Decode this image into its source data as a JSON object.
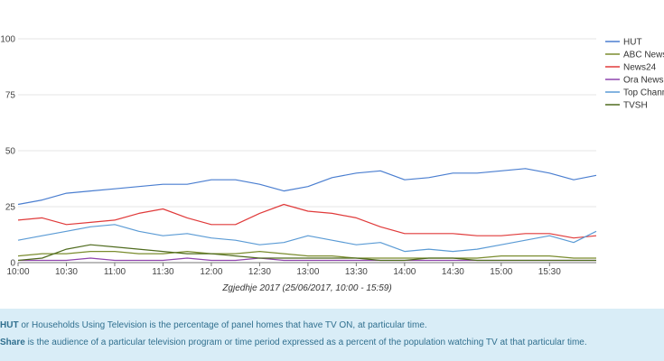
{
  "chart_data": {
    "type": "line",
    "xlabel": "Zgjedhje 2017 (25/06/2017, 10:00 - 15:59)",
    "x_ticks": [
      "10:00",
      "10:30",
      "11:00",
      "11:30",
      "12:00",
      "12:30",
      "13:00",
      "13:30",
      "14:00",
      "14:30",
      "15:00",
      "15:30"
    ],
    "x_range": [
      "10:00",
      "15:59"
    ],
    "ylim": [
      0,
      100
    ],
    "y_ticks": [
      0,
      25,
      50,
      75,
      100
    ],
    "grid": "horizontal",
    "legend_position": "right",
    "series": [
      {
        "name": "HUT",
        "color": "#4a7ed0",
        "times": [
          "10:00",
          "10:15",
          "10:30",
          "10:45",
          "11:00",
          "11:15",
          "11:30",
          "11:45",
          "12:00",
          "12:15",
          "12:30",
          "12:45",
          "13:00",
          "13:15",
          "13:30",
          "13:45",
          "14:00",
          "14:15",
          "14:30",
          "14:45",
          "15:00",
          "15:15",
          "15:30",
          "15:45",
          "15:59"
        ],
        "values": [
          26,
          28,
          31,
          32,
          33,
          34,
          35,
          35,
          37,
          37,
          35,
          32,
          34,
          38,
          40,
          41,
          37,
          38,
          40,
          40,
          41,
          42,
          40,
          37,
          39
        ]
      },
      {
        "name": "ABC News",
        "color": "#7a8c2e",
        "times": [
          "10:00",
          "10:15",
          "10:30",
          "10:45",
          "11:00",
          "11:15",
          "11:30",
          "11:45",
          "12:00",
          "12:15",
          "12:30",
          "12:45",
          "13:00",
          "13:15",
          "13:30",
          "13:45",
          "14:00",
          "14:15",
          "14:30",
          "14:45",
          "15:00",
          "15:15",
          "15:30",
          "15:45",
          "15:59"
        ],
        "values": [
          3,
          4,
          4,
          5,
          5,
          4,
          4,
          5,
          4,
          4,
          5,
          4,
          3,
          3,
          2,
          2,
          2,
          2,
          2,
          2,
          3,
          3,
          3,
          2,
          2
        ]
      },
      {
        "name": "News24",
        "color": "#e03a3a",
        "times": [
          "10:00",
          "10:15",
          "10:30",
          "10:45",
          "11:00",
          "11:15",
          "11:30",
          "11:45",
          "12:00",
          "12:15",
          "12:30",
          "12:45",
          "13:00",
          "13:15",
          "13:30",
          "13:45",
          "14:00",
          "14:15",
          "14:30",
          "14:45",
          "15:00",
          "15:15",
          "15:30",
          "15:45",
          "15:59"
        ],
        "values": [
          19,
          20,
          17,
          18,
          19,
          22,
          24,
          20,
          17,
          17,
          22,
          26,
          23,
          22,
          20,
          16,
          13,
          13,
          13,
          12,
          12,
          13,
          13,
          11,
          12
        ]
      },
      {
        "name": "Ora News",
        "color": "#8e44ad",
        "times": [
          "10:00",
          "10:15",
          "10:30",
          "10:45",
          "11:00",
          "11:15",
          "11:30",
          "11:45",
          "12:00",
          "12:15",
          "12:30",
          "12:45",
          "13:00",
          "13:15",
          "13:30",
          "13:45",
          "14:00",
          "14:15",
          "14:30",
          "14:45",
          "15:00",
          "15:15",
          "15:30",
          "15:45",
          "15:59"
        ],
        "values": [
          1,
          1,
          1,
          2,
          1,
          1,
          1,
          2,
          1,
          1,
          2,
          1,
          1,
          1,
          1,
          1,
          1,
          1,
          1,
          1,
          1,
          1,
          1,
          1,
          1
        ]
      },
      {
        "name": "Top Channel",
        "color": "#5b9bd5",
        "times": [
          "10:00",
          "10:15",
          "10:30",
          "10:45",
          "11:00",
          "11:15",
          "11:30",
          "11:45",
          "12:00",
          "12:15",
          "12:30",
          "12:45",
          "13:00",
          "13:15",
          "13:30",
          "13:45",
          "14:00",
          "14:15",
          "14:30",
          "14:45",
          "15:00",
          "15:15",
          "15:30",
          "15:45",
          "15:59"
        ],
        "values": [
          10,
          12,
          14,
          16,
          17,
          14,
          12,
          13,
          11,
          10,
          8,
          9,
          12,
          10,
          8,
          9,
          5,
          6,
          5,
          6,
          8,
          10,
          12,
          9,
          14
        ]
      },
      {
        "name": "TVSH",
        "color": "#4f6b1e",
        "times": [
          "10:00",
          "10:15",
          "10:30",
          "10:45",
          "11:00",
          "11:15",
          "11:30",
          "11:45",
          "12:00",
          "12:15",
          "12:30",
          "12:45",
          "13:00",
          "13:15",
          "13:30",
          "13:45",
          "14:00",
          "14:15",
          "14:30",
          "14:45",
          "15:00",
          "15:15",
          "15:30",
          "15:45",
          "15:59"
        ],
        "values": [
          1,
          2,
          6,
          8,
          7,
          6,
          5,
          4,
          4,
          3,
          2,
          2,
          2,
          2,
          2,
          1,
          1,
          2,
          2,
          1,
          1,
          1,
          1,
          1,
          1
        ]
      }
    ]
  },
  "info": {
    "hut_key": "HUT",
    "hut_text": " or Households Using Television is the percentage of panel homes that have TV ON, at particular time.",
    "share_key": "Share",
    "share_text": " is the audience of a particular television program or time period expressed as a percent of the population watching TV at that particular time."
  }
}
